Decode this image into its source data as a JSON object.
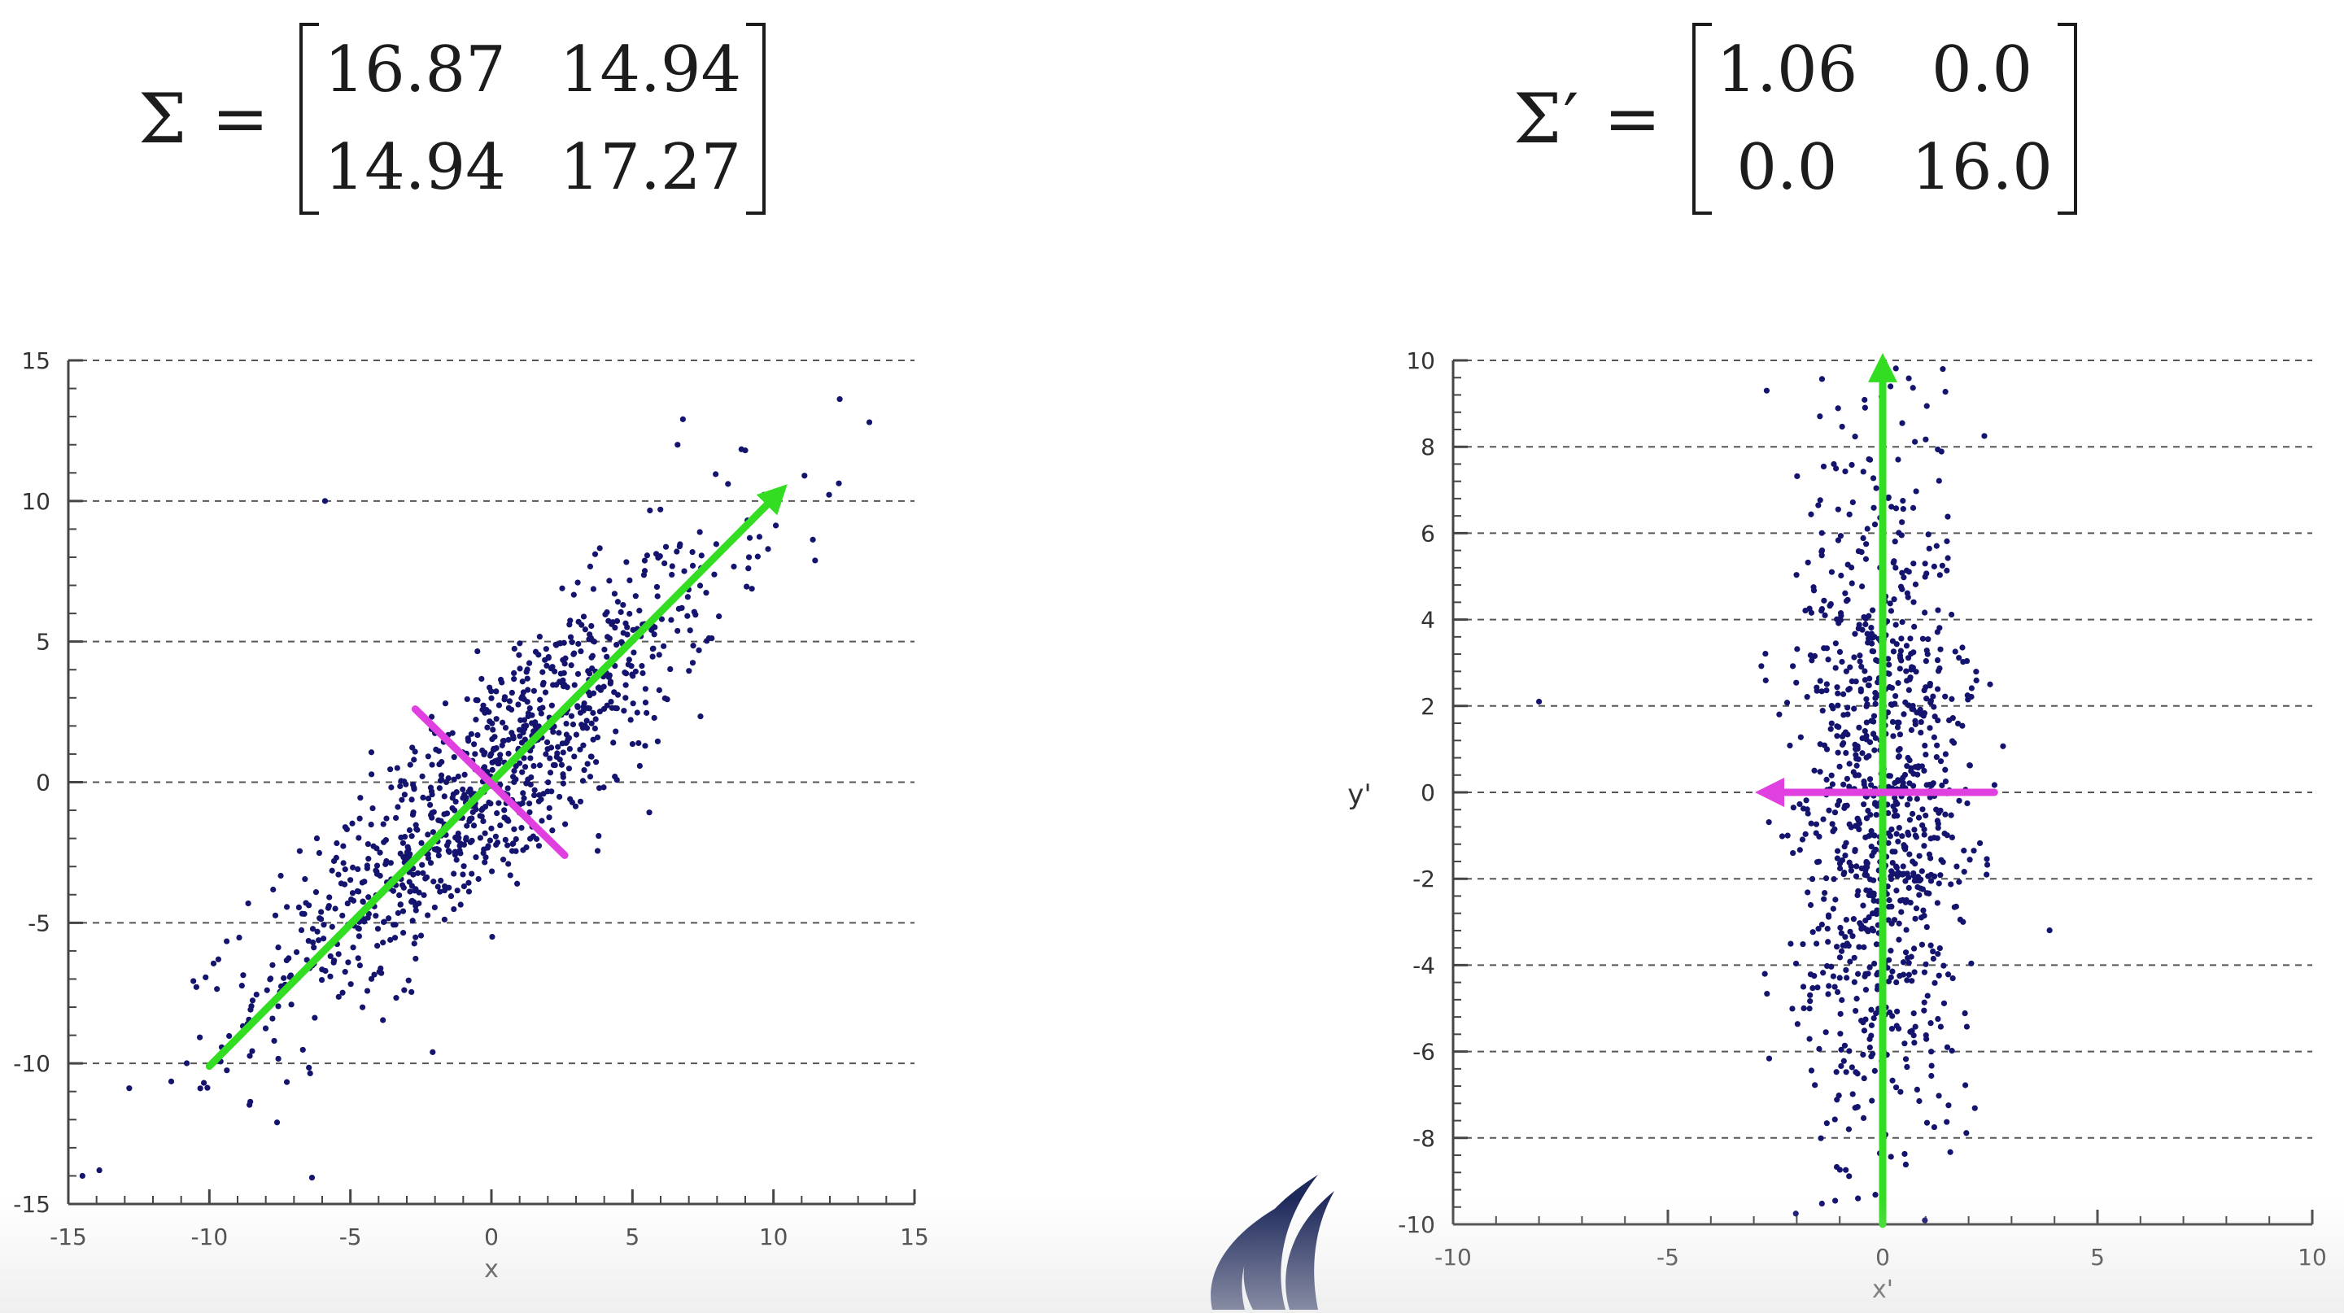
{
  "matrices": {
    "left": {
      "symbol": "Σ =",
      "cells": [
        [
          "16.87",
          "14.94"
        ],
        [
          "14.94",
          "17.27"
        ]
      ]
    },
    "right": {
      "symbol": "Σ′ =",
      "cells": [
        [
          "1.06",
          "0.0"
        ],
        [
          "0.0",
          "16.0"
        ]
      ]
    }
  },
  "chart_data": [
    {
      "type": "scatter",
      "title": "",
      "xlabel": "x",
      "ylabel": "",
      "xlim": [
        -15,
        15
      ],
      "ylim": [
        -15,
        15
      ],
      "xticks": [
        -15,
        -10,
        -5,
        0,
        5,
        10,
        15
      ],
      "yticks": [
        -15,
        -10,
        -5,
        0,
        5,
        10,
        15
      ],
      "grid": "horizontal dashed",
      "point_color": "#14146e",
      "point_count": 1000,
      "distribution": {
        "mean": [
          0,
          0
        ],
        "covariance": [
          [
            16.87,
            14.94
          ],
          [
            14.94,
            17.27
          ]
        ]
      },
      "outliers": [
        [
          -5.9,
          10.0
        ],
        [
          13.4,
          12.8
        ],
        [
          -13.9,
          -13.8
        ],
        [
          -14.5,
          -14.0
        ],
        [
          -7.6,
          -12.1
        ],
        [
          9.0,
          11.8
        ],
        [
          11.1,
          10.9
        ],
        [
          6.6,
          12.0
        ]
      ],
      "arrows": [
        {
          "color": "#33dd22",
          "from": [
            -10,
            -10.1
          ],
          "to": [
            10.2,
            10.3
          ],
          "head": true
        },
        {
          "color": "#e040e0",
          "from": [
            -2.7,
            2.6
          ],
          "to": [
            2.6,
            -2.6
          ],
          "head": false
        }
      ]
    },
    {
      "type": "scatter",
      "title": "",
      "xlabel": "x'",
      "ylabel": "y'",
      "xlim": [
        -10,
        10
      ],
      "ylim": [
        -10,
        10
      ],
      "xticks": [
        -10,
        -5,
        0,
        5,
        10
      ],
      "yticks": [
        -10,
        -8,
        -6,
        -4,
        -2,
        0,
        2,
        4,
        6,
        8,
        10
      ],
      "grid": "horizontal dashed",
      "point_color": "#14146e",
      "point_count": 1000,
      "distribution": {
        "mean": [
          0,
          0
        ],
        "covariance": [
          [
            1.06,
            0.0
          ],
          [
            0.0,
            16.0
          ]
        ]
      },
      "outliers": [
        [
          -8.0,
          2.1
        ],
        [
          -2.7,
          9.3
        ],
        [
          1.4,
          9.8
        ],
        [
          2.5,
          2.5
        ]
      ],
      "arrows": [
        {
          "color": "#33dd22",
          "from": [
            0,
            -10
          ],
          "to": [
            0,
            9.9
          ],
          "head": true
        },
        {
          "color": "#e040e0",
          "from": [
            2.6,
            0
          ],
          "to": [
            -2.7,
            0
          ],
          "head": true
        }
      ]
    }
  ]
}
